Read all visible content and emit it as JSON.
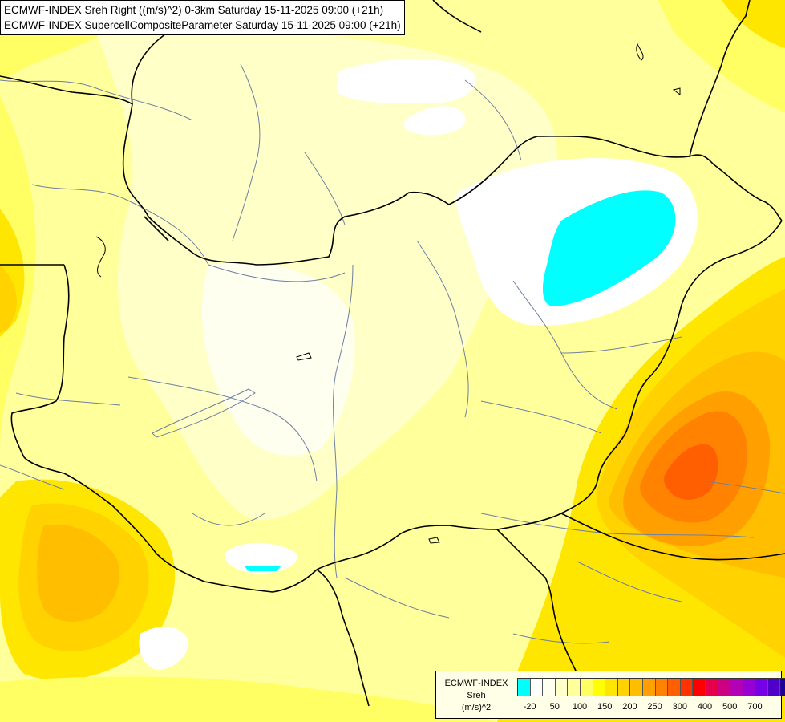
{
  "title": {
    "line1": "ECMWF-INDEX Sreh Right ((m/s)^2) 0-3km Saturday 15-11-2025 09:00 (+21h)",
    "line2": "ECMWF-INDEX SupercellCompositeParameter Saturday 15-11-2025 09:00 (+21h)"
  },
  "legend": {
    "line1": "ECMWF-INDEX",
    "line2": "Sreh",
    "line3": "(m/s)^2",
    "colors": [
      "#00ffff",
      "#ffffff",
      "#fffff0",
      "#ffffc8",
      "#ffff9b",
      "#ffff64",
      "#ffff00",
      "#ffe600",
      "#ffd200",
      "#ffbe00",
      "#ffa000",
      "#ff8200",
      "#ff5f00",
      "#ff3200",
      "#ff0000",
      "#e6004b",
      "#cd0082",
      "#b400b4",
      "#9600d2",
      "#7800e6",
      "#5000c8",
      "#1e0096"
    ],
    "ticks": [
      "-20",
      "50",
      "100",
      "150",
      "200",
      "250",
      "300",
      "400",
      "500",
      "700"
    ]
  }
}
